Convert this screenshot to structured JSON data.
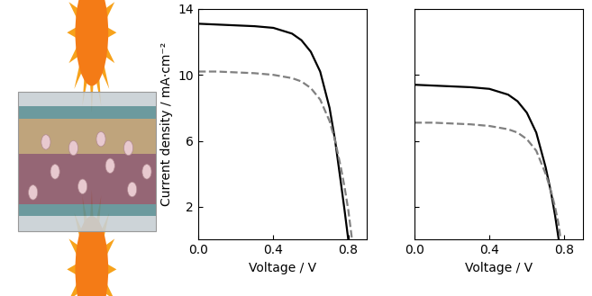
{
  "chart_data": [
    {
      "type": "line",
      "y_label": "Current density / mA·cm⁻²",
      "x_label": "Voltage / V",
      "xlim": [
        0,
        0.9
      ],
      "xticks": [
        0.0,
        0.4,
        0.8
      ],
      "ylim": [
        0,
        14
      ],
      "yticks": [
        2,
        6,
        10,
        14
      ],
      "series": [
        {
          "color": "#000000",
          "line_style": "solid",
          "x": [
            0,
            0.1,
            0.2,
            0.3,
            0.4,
            0.5,
            0.55,
            0.6,
            0.65,
            0.7,
            0.73,
            0.76,
            0.78,
            0.8
          ],
          "values": [
            13.1,
            13.05,
            13.0,
            12.95,
            12.85,
            12.5,
            12.1,
            11.4,
            10.2,
            8.0,
            6.0,
            3.5,
            1.8,
            0
          ]
        },
        {
          "color": "#808080",
          "line_style": "dashed",
          "x": [
            0,
            0.1,
            0.2,
            0.3,
            0.4,
            0.5,
            0.55,
            0.6,
            0.65,
            0.7,
            0.73,
            0.76,
            0.78,
            0.8,
            0.82
          ],
          "values": [
            10.2,
            10.2,
            10.15,
            10.1,
            10.0,
            9.8,
            9.6,
            9.2,
            8.5,
            7.2,
            6.0,
            4.4,
            3.2,
            1.8,
            0
          ]
        }
      ]
    },
    {
      "type": "line",
      "x_label": "Voltage / V",
      "xlim": [
        0,
        0.9
      ],
      "xticks": [
        0.0,
        0.4,
        0.8
      ],
      "ylim": [
        0,
        14
      ],
      "yticks": [
        2,
        6,
        10,
        14
      ],
      "tick_labels": "x",
      "series": [
        {
          "color": "#000000",
          "line_style": "solid",
          "x": [
            0,
            0.1,
            0.2,
            0.3,
            0.4,
            0.5,
            0.55,
            0.6,
            0.65,
            0.7,
            0.73,
            0.75,
            0.77
          ],
          "values": [
            9.4,
            9.35,
            9.3,
            9.25,
            9.15,
            8.8,
            8.4,
            7.7,
            6.5,
            4.4,
            2.8,
            1.5,
            0
          ]
        },
        {
          "color": "#808080",
          "line_style": "dashed",
          "x": [
            0,
            0.1,
            0.2,
            0.3,
            0.4,
            0.5,
            0.55,
            0.6,
            0.65,
            0.7,
            0.73,
            0.75,
            0.77,
            0.78
          ],
          "values": [
            7.1,
            7.1,
            7.05,
            7.0,
            6.9,
            6.7,
            6.5,
            6.1,
            5.4,
            4.0,
            2.9,
            2.0,
            0.9,
            0
          ]
        }
      ]
    }
  ]
}
